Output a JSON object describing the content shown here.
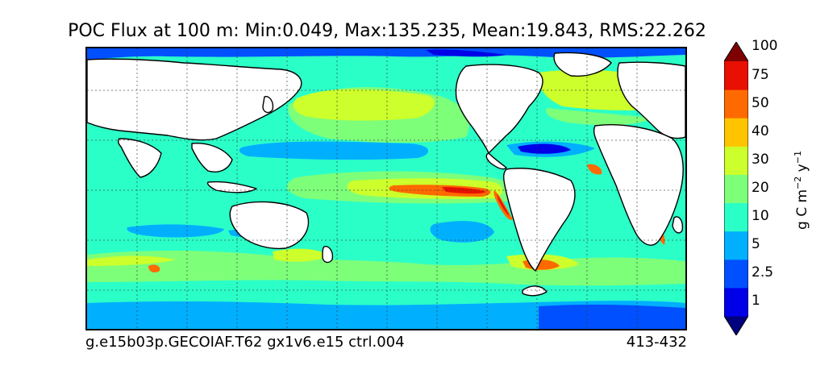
{
  "title": "POC Flux at 100 m: Min:0.049, Max:135.235, Mean:19.843, RMS:22.262",
  "footer": {
    "case_name": "g.e15b03p.GECOIAF.T62 gx1v6.e15 ctrl.004",
    "years": "413-432"
  },
  "colorbar": {
    "units_main": "g C m",
    "units_exp1": "−2",
    "units_mid": " y",
    "units_exp2": "−1",
    "levels": [
      "1",
      "2.5",
      "5",
      "10",
      "20",
      "30",
      "40",
      "50",
      "75",
      "100"
    ],
    "colors": [
      "#00007f",
      "#0000e8",
      "#0050ff",
      "#00b0ff",
      "#2bffc8",
      "#7dff7a",
      "#ccff2b",
      "#ffc400",
      "#ff6a00",
      "#e81000",
      "#7f0000"
    ],
    "extend": "both"
  },
  "map": {
    "projection": "plate-carree",
    "land_color": "#ffffff",
    "coastline_color": "#000000",
    "gridlines": "dotted",
    "field_colors": {
      "very_low": "#0000e8",
      "low": "#0050ff",
      "low_mid": "#00b0ff",
      "mid": "#2bffc8",
      "mid_high": "#7dff7a",
      "high": "#ccff2b",
      "higher": "#ffc400",
      "very_high": "#ff6a00",
      "extreme": "#e81000",
      "max": "#7f0000"
    }
  }
}
